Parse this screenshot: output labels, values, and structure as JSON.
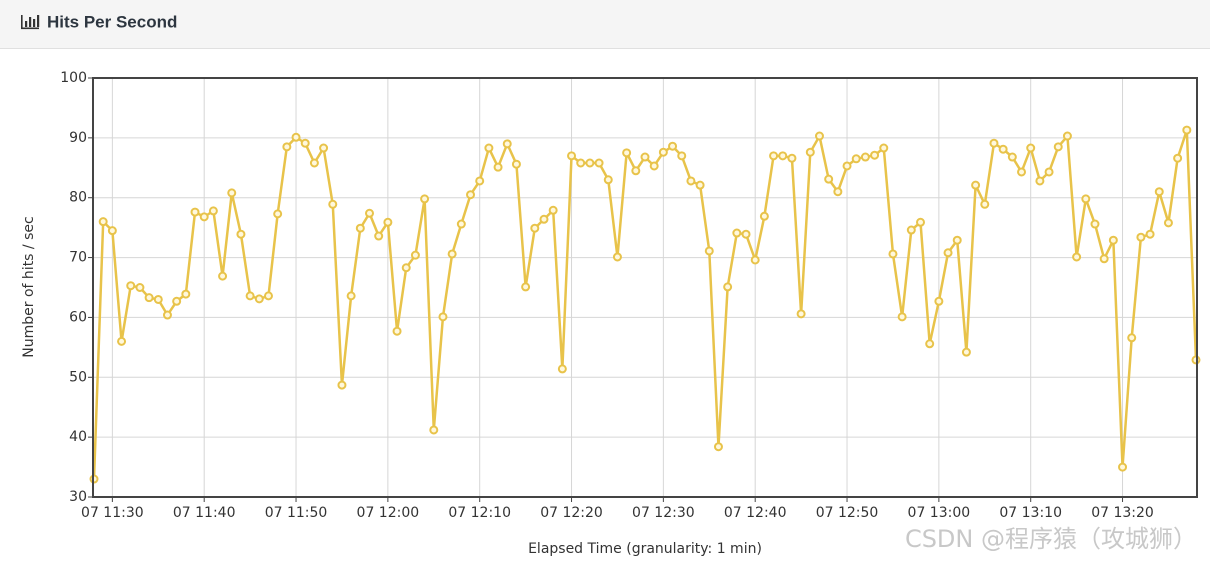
{
  "chart_data": {
    "type": "line",
    "title": "Hits Per Second",
    "x_label": "Elapsed Time (granularity: 1 min)",
    "y_label": "Number of hits / sec",
    "color": "#e8c34a",
    "grid": true,
    "ylim": [
      30,
      100
    ],
    "yticks": [
      30,
      40,
      50,
      60,
      70,
      80,
      90,
      100
    ],
    "xlim": [
      "07 11:28",
      "07 13:28"
    ],
    "xticks": [
      "07 11:30",
      "07 11:40",
      "07 11:50",
      "07 12:00",
      "07 12:10",
      "07 12:20",
      "07 12:30",
      "07 12:40",
      "07 12:50",
      "07 13:00",
      "07 13:10",
      "07 13:20"
    ],
    "x": [
      "07 11:28",
      "07 11:29",
      "07 11:30",
      "07 11:31",
      "07 11:32",
      "07 11:33",
      "07 11:34",
      "07 11:35",
      "07 11:36",
      "07 11:37",
      "07 11:38",
      "07 11:39",
      "07 11:40",
      "07 11:41",
      "07 11:42",
      "07 11:43",
      "07 11:44",
      "07 11:45",
      "07 11:46",
      "07 11:47",
      "07 11:48",
      "07 11:49",
      "07 11:50",
      "07 11:51",
      "07 11:52",
      "07 11:53",
      "07 11:54",
      "07 11:55",
      "07 11:56",
      "07 11:57",
      "07 11:58",
      "07 11:59",
      "07 12:00",
      "07 12:01",
      "07 12:02",
      "07 12:03",
      "07 12:04",
      "07 12:05",
      "07 12:06",
      "07 12:07",
      "07 12:08",
      "07 12:09",
      "07 12:10",
      "07 12:11",
      "07 12:12",
      "07 12:13",
      "07 12:14",
      "07 12:15",
      "07 12:16",
      "07 12:17",
      "07 12:18",
      "07 12:19",
      "07 12:20",
      "07 12:21",
      "07 12:22",
      "07 12:23",
      "07 12:24",
      "07 12:25",
      "07 12:26",
      "07 12:27",
      "07 12:28",
      "07 12:29",
      "07 12:30",
      "07 12:31",
      "07 12:32",
      "07 12:33",
      "07 12:34",
      "07 12:35",
      "07 12:36",
      "07 12:37",
      "07 12:38",
      "07 12:39",
      "07 12:40",
      "07 12:41",
      "07 12:42",
      "07 12:43",
      "07 12:44",
      "07 12:45",
      "07 12:46",
      "07 12:47",
      "07 12:48",
      "07 12:49",
      "07 12:50",
      "07 12:51",
      "07 12:52",
      "07 12:53",
      "07 12:54",
      "07 12:55",
      "07 12:56",
      "07 12:57",
      "07 12:58",
      "07 12:59",
      "07 13:00",
      "07 13:01",
      "07 13:02",
      "07 13:03",
      "07 13:04",
      "07 13:05",
      "07 13:06",
      "07 13:07",
      "07 13:08",
      "07 13:09",
      "07 13:10",
      "07 13:11",
      "07 13:12",
      "07 13:13",
      "07 13:14",
      "07 13:15",
      "07 13:16",
      "07 13:17",
      "07 13:18",
      "07 13:19",
      "07 13:20",
      "07 13:21",
      "07 13:22",
      "07 13:23",
      "07 13:24",
      "07 13:25",
      "07 13:26",
      "07 13:27",
      "07 13:28"
    ],
    "values": [
      33,
      76,
      74.5,
      56,
      65.3,
      65,
      63.3,
      63,
      60.4,
      62.7,
      63.9,
      77.6,
      76.8,
      77.8,
      66.9,
      80.8,
      73.9,
      63.6,
      63.1,
      63.6,
      77.3,
      88.5,
      90.1,
      89.1,
      85.8,
      88.3,
      78.9,
      48.7,
      63.6,
      74.9,
      77.4,
      73.6,
      75.9,
      57.7,
      68.3,
      70.4,
      79.8,
      41.2,
      60.1,
      70.6,
      75.6,
      80.5,
      82.8,
      88.3,
      85.1,
      89,
      85.6,
      65.1,
      74.9,
      76.4,
      77.9,
      51.4,
      87,
      85.8,
      85.8,
      85.8,
      83,
      70.1,
      87.5,
      84.5,
      86.8,
      85.3,
      87.6,
      88.6,
      87,
      82.8,
      82.1,
      71.1,
      38.4,
      65.1,
      74.1,
      73.9,
      69.6,
      76.9,
      87,
      87,
      86.6,
      60.6,
      87.6,
      90.3,
      83.1,
      81,
      85.3,
      86.5,
      86.8,
      87.1,
      88.3,
      70.6,
      60.1,
      74.6,
      75.9,
      55.6,
      62.7,
      70.8,
      72.9,
      54.2,
      82.1,
      78.9,
      89.1,
      88.1,
      86.8,
      84.3,
      88.3,
      82.8,
      84.3,
      88.5,
      90.3,
      70.1,
      79.8,
      75.6,
      69.8,
      72.9,
      35,
      56.6,
      73.4,
      73.9,
      81,
      75.8,
      86.6,
      91.3,
      52.9
    ]
  },
  "watermark": "CSDN @程序猿（攻城狮）"
}
